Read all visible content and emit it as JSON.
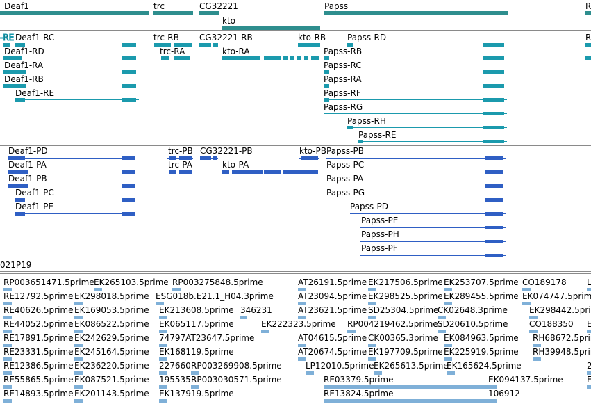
{
  "colors": {
    "gene": "#2e8e8e",
    "transcript": "#1b9aad",
    "protein": "#2f5fc4",
    "est": "#7fb0d8",
    "divider": "#8a8a8a",
    "text": "#000000"
  },
  "tracks": {
    "genes": {
      "labels": [
        "Deaf1",
        "trc",
        "CG32221",
        "Papss",
        "R",
        "kto"
      ],
      "label_colors": "#2e8e8e"
    },
    "transcripts": {
      "labels": [
        "-RE",
        "Deaf1-RC",
        "trc-RB",
        "CG32221-RB",
        "kto-RB",
        "Papss-RD",
        "R",
        "Deaf1-RD",
        "trc-RA",
        "kto-RA",
        "Papss-RB",
        "Deaf1-RA",
        "Papss-RC",
        "Deaf1-RB",
        "Papss-RA",
        "Deaf1-RE",
        "Papss-RF",
        "Papss-RG",
        "Papss-RH",
        "Papss-RE"
      ]
    },
    "proteins": {
      "labels": [
        "Deaf1-PD",
        "trc-PB",
        "CG32221-PB",
        "kto-PB",
        "Papss-PB",
        "Deaf1-PA",
        "trc-PA",
        "kto-PA",
        "Papss-PC",
        "Deaf1-PB",
        "Papss-PA",
        "Deaf1-PC",
        "Papss-PG",
        "Deaf1-PE",
        "Papss-PD",
        "Papss-PE",
        "Papss-PH",
        "Papss-PF"
      ]
    },
    "clone": {
      "label": "021P19"
    },
    "ests": {
      "labels": [
        "RP003651471.5prime",
        "EK265103.5prime",
        "RP003275848.5prime",
        "AT26191.5prime",
        "EK217506.5prime",
        "EK253707.5prime",
        "CO189178",
        "L",
        "RE12792.5prime",
        "EK298018.5prime",
        "ESG018b.E21.1_H04.3prime",
        "AT23094.5prime",
        "EK298525.5prime",
        "EK289455.5prime",
        "EK074747.5prime",
        "RE40626.5prime",
        "EK169053.5prime",
        "EK213608.5prime",
        "346231",
        "AT23621.5prime",
        "SD25304.5prime",
        "CK02648.3prime",
        "EK298442.5prime",
        "RE44052.5prime",
        "EK086522.5prime",
        "EK065117.5prime",
        "EK222323.5prime",
        "RP004219462.5prime",
        "SD20610.5prime",
        "CO188350",
        "E",
        "RE17891.5prime",
        "EK242629.5prime",
        "74797AT23647.5prime",
        "AT04615.5prime",
        "CK00365.3prime",
        "EK084963.5prime",
        "RH68672.5prime",
        "RE23331.5prime",
        "EK245164.5prime",
        "EK168119.5prime",
        "AT20674.5prime",
        "EK197709.5prime",
        "EK225919.5prime",
        "RH39948.5prime",
        "RE12386.5prime",
        "EK236220.5prime",
        "227660",
        "RP003269908.5prime",
        "LP12010.5prime",
        "EK265613.5prime",
        "EK165624.5prime",
        "2",
        "RE55865.5prime",
        "EK087521.5prime",
        "195535",
        "RP003030571.5prime",
        "RE03379.5prime",
        "EK094137.5prime",
        "E",
        "RE14893.5prime",
        "EK201143.5prime",
        "EK137919.5prime",
        "RE13824.5prime",
        "106912"
      ]
    }
  }
}
